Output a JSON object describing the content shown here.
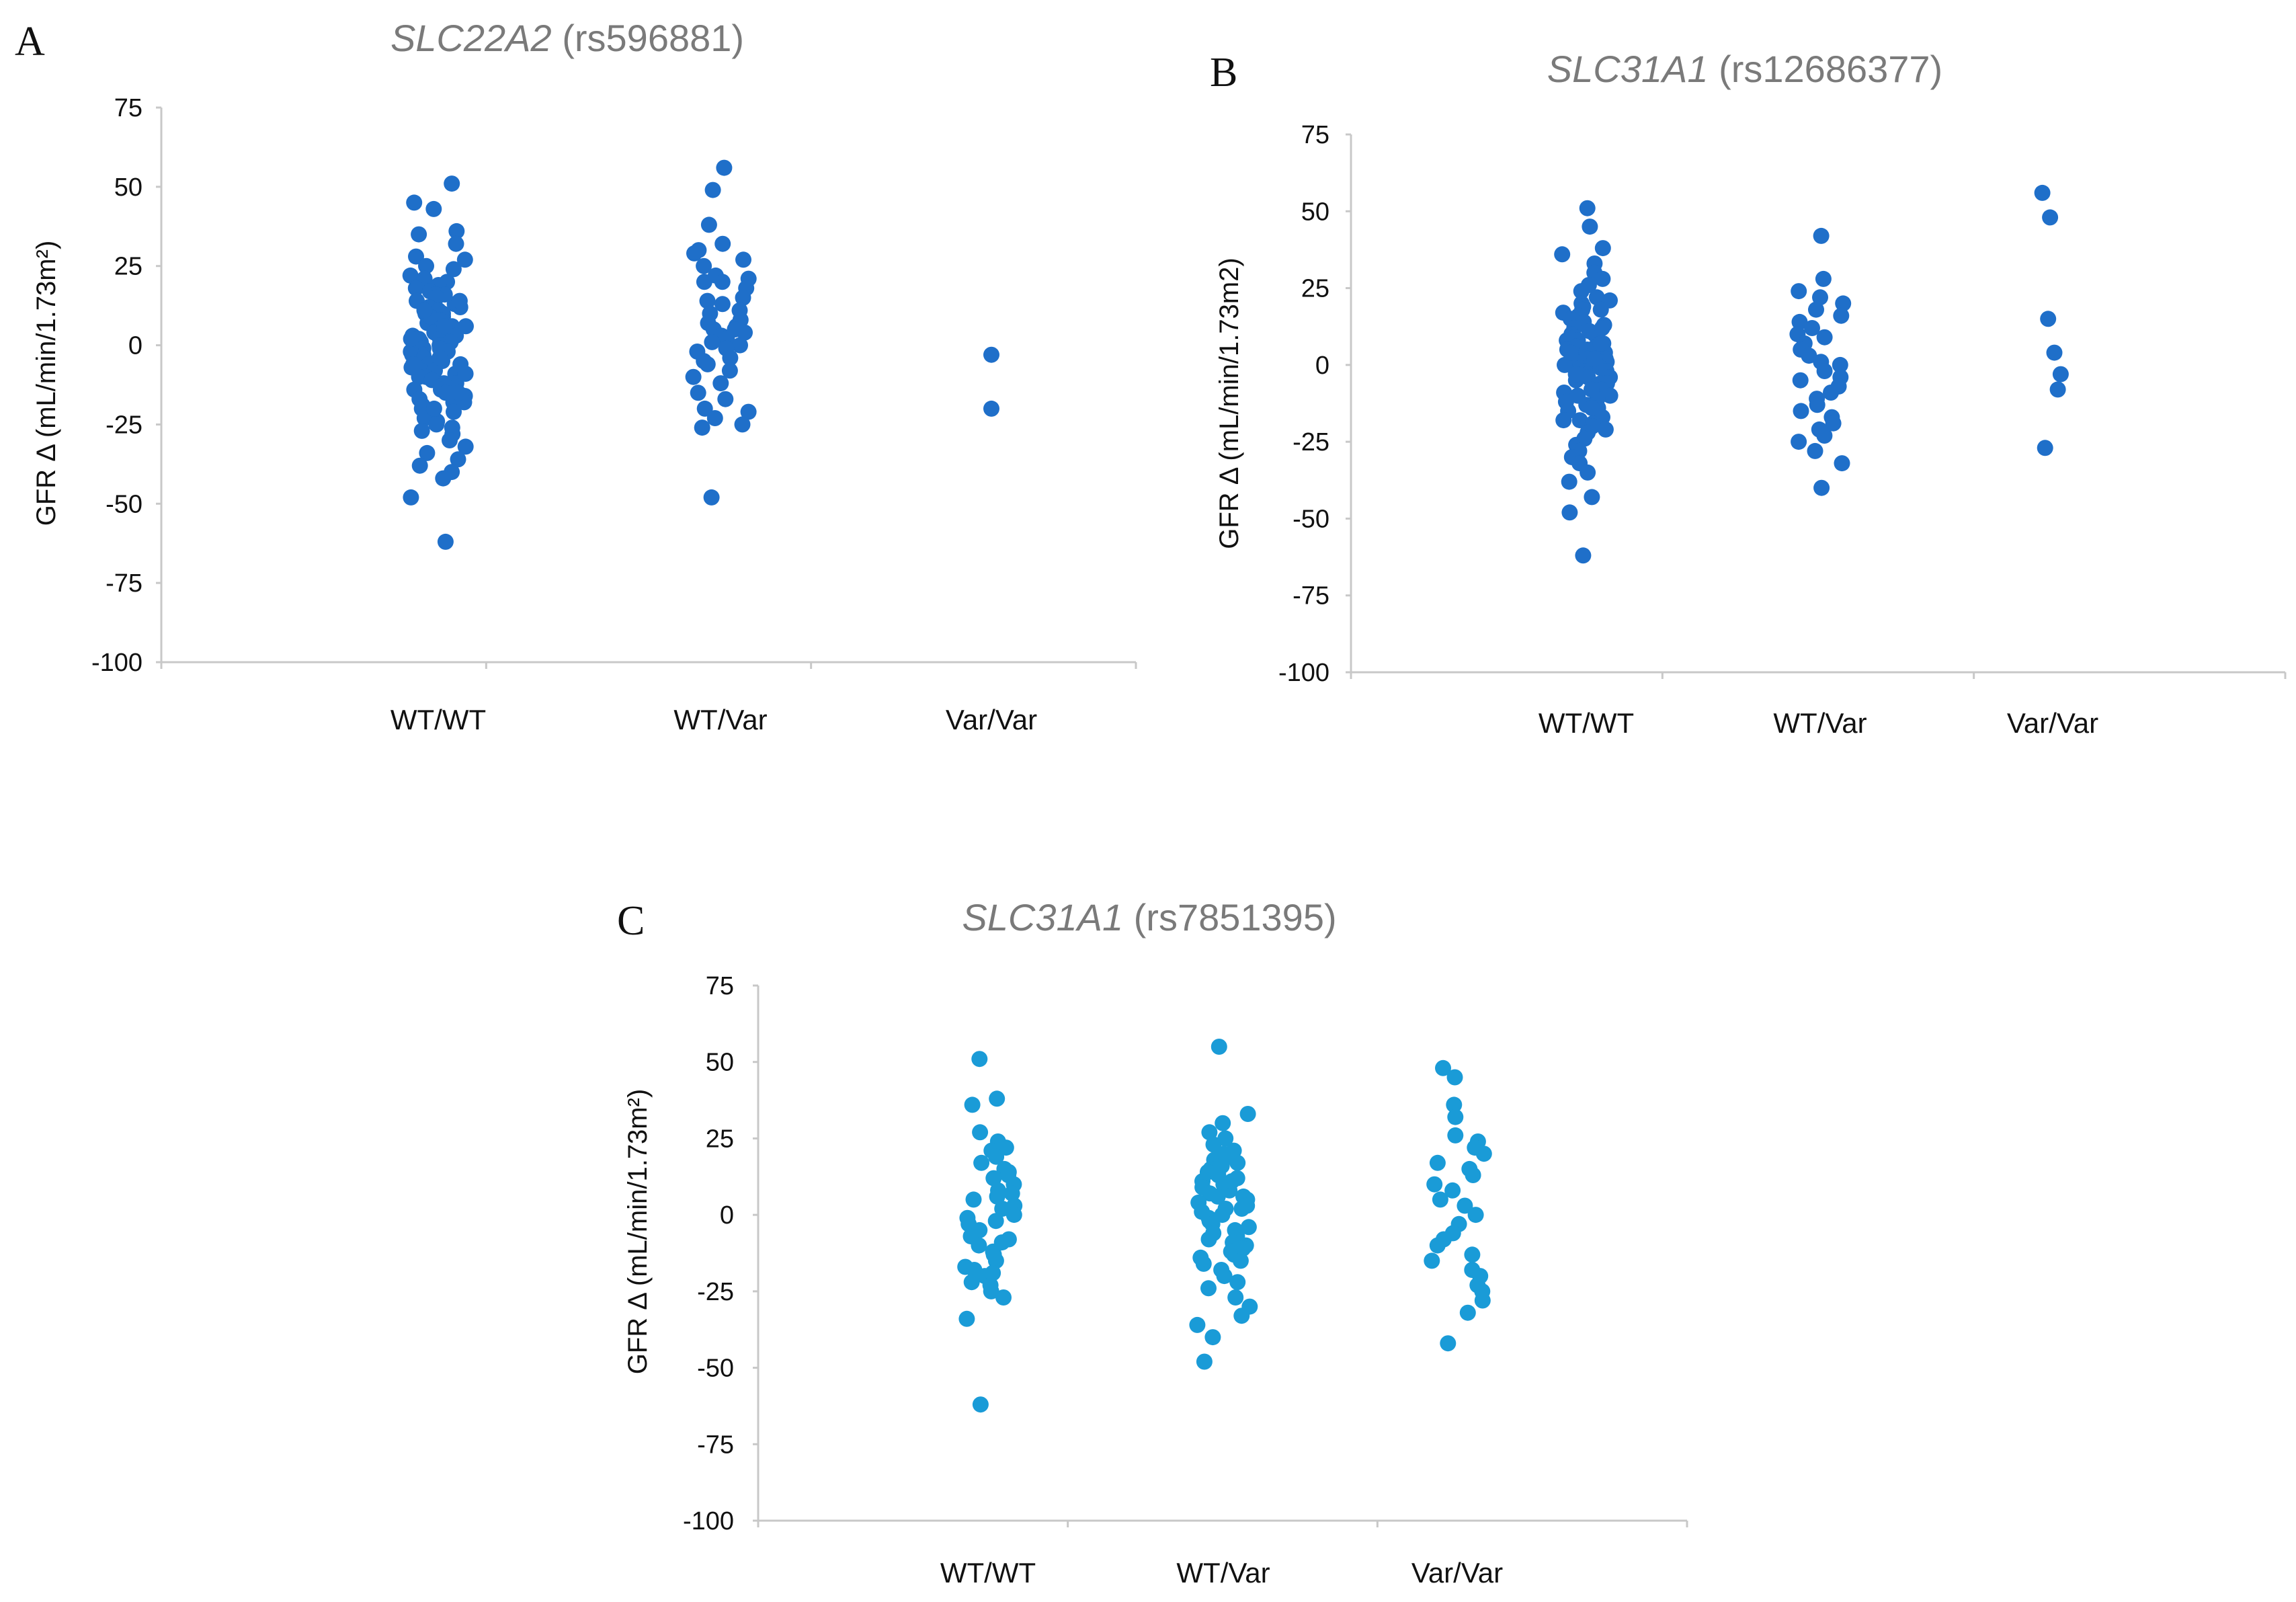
{
  "chart_data": [
    {
      "type": "scatter",
      "panel": "A",
      "title_gene": "SLC22A2",
      "title_snp": "(rs596881)",
      "ylabel": "GFR Δ (mL/min/1.73m²)",
      "xlabel": "",
      "categories": [
        "WT/WT",
        "WT/Var",
        "Var/Var"
      ],
      "yticks": [
        "75",
        "50",
        "25",
        "0",
        "-25",
        "-50",
        "-75",
        "-100"
      ],
      "ylim": [
        -100,
        75
      ],
      "point_color": "#1f6fc9",
      "series": [
        {
          "name": "WT/WT",
          "values": [
            51,
            45,
            43,
            36,
            35,
            32,
            28,
            27,
            25,
            24,
            22,
            21,
            20,
            19,
            18,
            17,
            16,
            16,
            15,
            14,
            13,
            12,
            12,
            11,
            10,
            10,
            9,
            8,
            8,
            7,
            6,
            6,
            5,
            5,
            4,
            3,
            3,
            2,
            2,
            1,
            1,
            0,
            0,
            -1,
            -1,
            -2,
            -2,
            -3,
            -3,
            -4,
            -5,
            -5,
            -6,
            -6,
            -7,
            -8,
            -8,
            -9,
            -10,
            -10,
            -11,
            -12,
            -12,
            -13,
            -14,
            -14,
            -15,
            -16,
            -17,
            -18,
            -18,
            -19,
            -20,
            -21,
            -22,
            -23,
            -24,
            -25,
            -26,
            -27,
            -28,
            -30,
            -32,
            -34,
            -36,
            -38,
            -40,
            -42,
            -48,
            -62,
            14,
            6,
            -4,
            -9,
            -15,
            9,
            2,
            -20,
            11,
            -6
          ]
        },
        {
          "name": "WT/Var",
          "values": [
            56,
            49,
            38,
            32,
            30,
            29,
            27,
            25,
            22,
            21,
            20,
            20,
            18,
            15,
            14,
            13,
            11,
            10,
            8,
            7,
            6,
            5,
            5,
            4,
            3,
            2,
            1,
            0,
            -1,
            -2,
            -4,
            -5,
            -6,
            -8,
            -10,
            -12,
            -15,
            -17,
            -20,
            -21,
            -23,
            -25,
            -26,
            -48
          ]
        },
        {
          "name": "Var/Var",
          "values": [
            -3,
            -20
          ]
        }
      ]
    },
    {
      "type": "scatter",
      "panel": "B",
      "title_gene": "SLC31A1",
      "title_snp": "(rs12686377)",
      "ylabel": "GFR Δ (mL/min/1.73m2)",
      "xlabel": "",
      "categories": [
        "WT/WT",
        "WT/Var",
        "Var/Var"
      ],
      "yticks": [
        "75",
        "50",
        "25",
        "0",
        "-25",
        "-50",
        "-75",
        "-100"
      ],
      "ylim": [
        -100,
        75
      ],
      "point_color": "#1f6fc9",
      "series": [
        {
          "name": "WT/WT",
          "values": [
            51,
            45,
            38,
            36,
            33,
            30,
            28,
            26,
            24,
            22,
            21,
            20,
            19,
            18,
            17,
            16,
            15,
            14,
            13,
            12,
            11,
            10,
            10,
            9,
            8,
            8,
            7,
            6,
            6,
            5,
            5,
            4,
            3,
            3,
            2,
            2,
            1,
            1,
            0,
            0,
            -1,
            -1,
            -2,
            -2,
            -3,
            -4,
            -4,
            -5,
            -6,
            -6,
            -7,
            -8,
            -9,
            -10,
            -10,
            -11,
            -12,
            -13,
            -14,
            -15,
            -16,
            -17,
            -18,
            -19,
            -20,
            -21,
            -22,
            -24,
            -26,
            -28,
            -30,
            -32,
            -35,
            -38,
            -43,
            -48,
            -62,
            12,
            4,
            -8,
            -14,
            18,
            -3,
            7,
            -18,
            2
          ]
        },
        {
          "name": "WT/Var",
          "values": [
            42,
            28,
            24,
            22,
            20,
            18,
            16,
            14,
            12,
            10,
            9,
            7,
            5,
            3,
            1,
            0,
            -2,
            -4,
            -5,
            -7,
            -9,
            -11,
            -13,
            -15,
            -17,
            -19,
            -21,
            -23,
            -25,
            -28,
            -32,
            -40
          ]
        },
        {
          "name": "Var/Var",
          "values": [
            56,
            48,
            15,
            4,
            -3,
            -8,
            -27
          ]
        }
      ]
    },
    {
      "type": "scatter",
      "panel": "C",
      "title_gene": "SLC31A1",
      "title_snp": "(rs7851395)",
      "ylabel": "GFR Δ (mL/min/1.73m²)",
      "xlabel": "",
      "categories": [
        "WT/WT",
        "WT/Var",
        "Var/Var"
      ],
      "yticks": [
        "75",
        "50",
        "25",
        "0",
        "-25",
        "-50",
        "-75",
        "-100"
      ],
      "ylim": [
        -100,
        75
      ],
      "point_color": "#1a9bd7",
      "series": [
        {
          "name": "WT/WT",
          "values": [
            51,
            38,
            36,
            27,
            24,
            22,
            21,
            19,
            17,
            15,
            13,
            12,
            10,
            8,
            7,
            5,
            3,
            2,
            0,
            -2,
            -3,
            -5,
            -7,
            -8,
            -10,
            -12,
            -13,
            -15,
            -17,
            -18,
            -20,
            -22,
            -23,
            -25,
            -27,
            -34,
            -62,
            14,
            -1,
            -9,
            6,
            -19
          ]
        },
        {
          "name": "WT/Var",
          "values": [
            55,
            33,
            30,
            27,
            25,
            23,
            21,
            20,
            18,
            17,
            16,
            15,
            14,
            13,
            12,
            11,
            10,
            9,
            8,
            7,
            6,
            5,
            4,
            3,
            2,
            1,
            0,
            -1,
            -2,
            -3,
            -4,
            -5,
            -6,
            -7,
            -8,
            -9,
            -10,
            -12,
            -13,
            -14,
            -16,
            -18,
            -20,
            -22,
            -24,
            -27,
            -30,
            -33,
            -36,
            -40,
            -48,
            19,
            6,
            -11,
            2,
            11,
            -15
          ]
        },
        {
          "name": "Var/Var",
          "values": [
            48,
            45,
            36,
            32,
            26,
            24,
            22,
            20,
            17,
            15,
            13,
            10,
            8,
            5,
            3,
            0,
            -3,
            -6,
            -8,
            -10,
            -13,
            -15,
            -18,
            -20,
            -23,
            -25,
            -28,
            -32,
            -42
          ]
        }
      ]
    }
  ]
}
